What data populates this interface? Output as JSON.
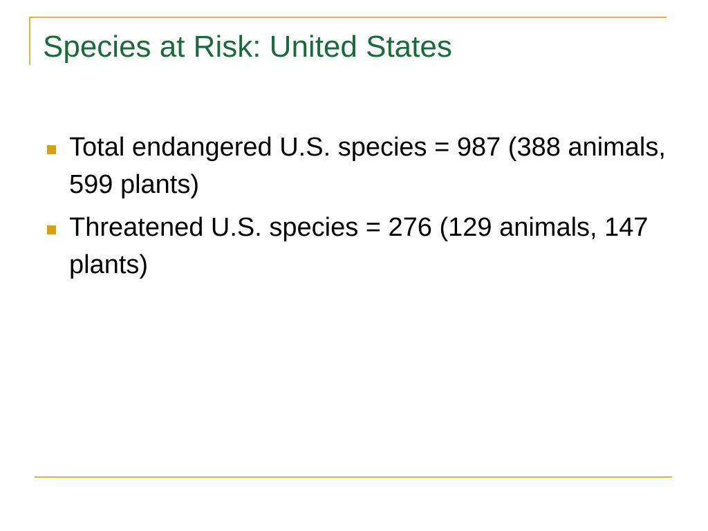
{
  "colors": {
    "title": "#1a6b3c",
    "accent_line": "#e0b24a",
    "bullet": "#d4a017",
    "text": "#000000"
  },
  "slide": {
    "title": "Species at Risk:  United States",
    "bullets": [
      {
        "icon": "square-bullet-icon",
        "text": "Total endangered U.S. species = 987 (388 animals, 599 plants)"
      },
      {
        "icon": "square-bullet-icon",
        "text": "Threatened U.S. species = 276 (129 animals, 147 plants)"
      }
    ]
  }
}
